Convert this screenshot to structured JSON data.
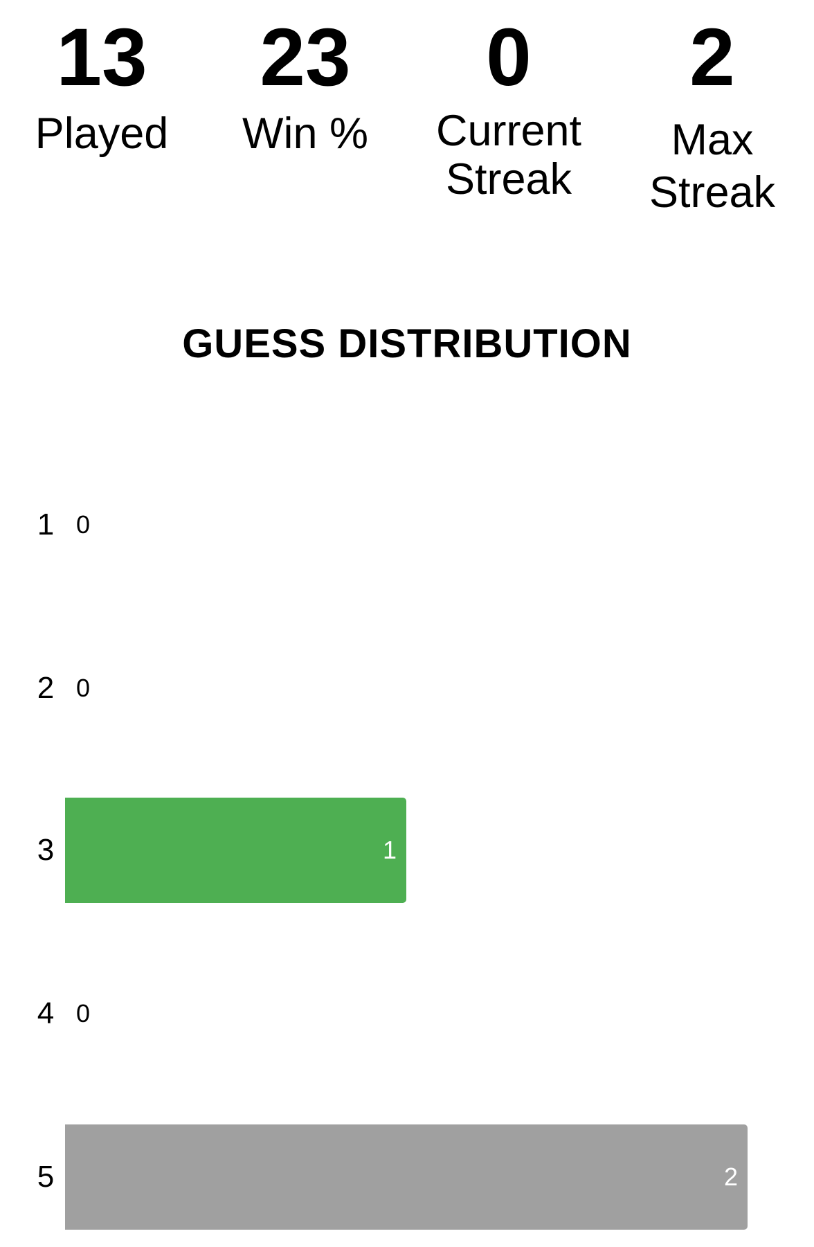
{
  "stats": [
    {
      "value": "13",
      "label": "Played"
    },
    {
      "value": "23",
      "label": "Win %"
    },
    {
      "value": "0",
      "label": "Current\nStreak"
    },
    {
      "value": "2",
      "label": "Max\nStreak"
    }
  ],
  "heading": "GUESS DISTRIBUTION",
  "colors": {
    "correct": "#4eaf52",
    "present": "#a0a0a0"
  },
  "chart_data": {
    "type": "bar",
    "orientation": "horizontal",
    "categories": [
      "1",
      "2",
      "3",
      "4",
      "5"
    ],
    "values": [
      0,
      0,
      1,
      0,
      2
    ],
    "highlight_index": 2,
    "xlim": [
      0,
      2
    ]
  }
}
